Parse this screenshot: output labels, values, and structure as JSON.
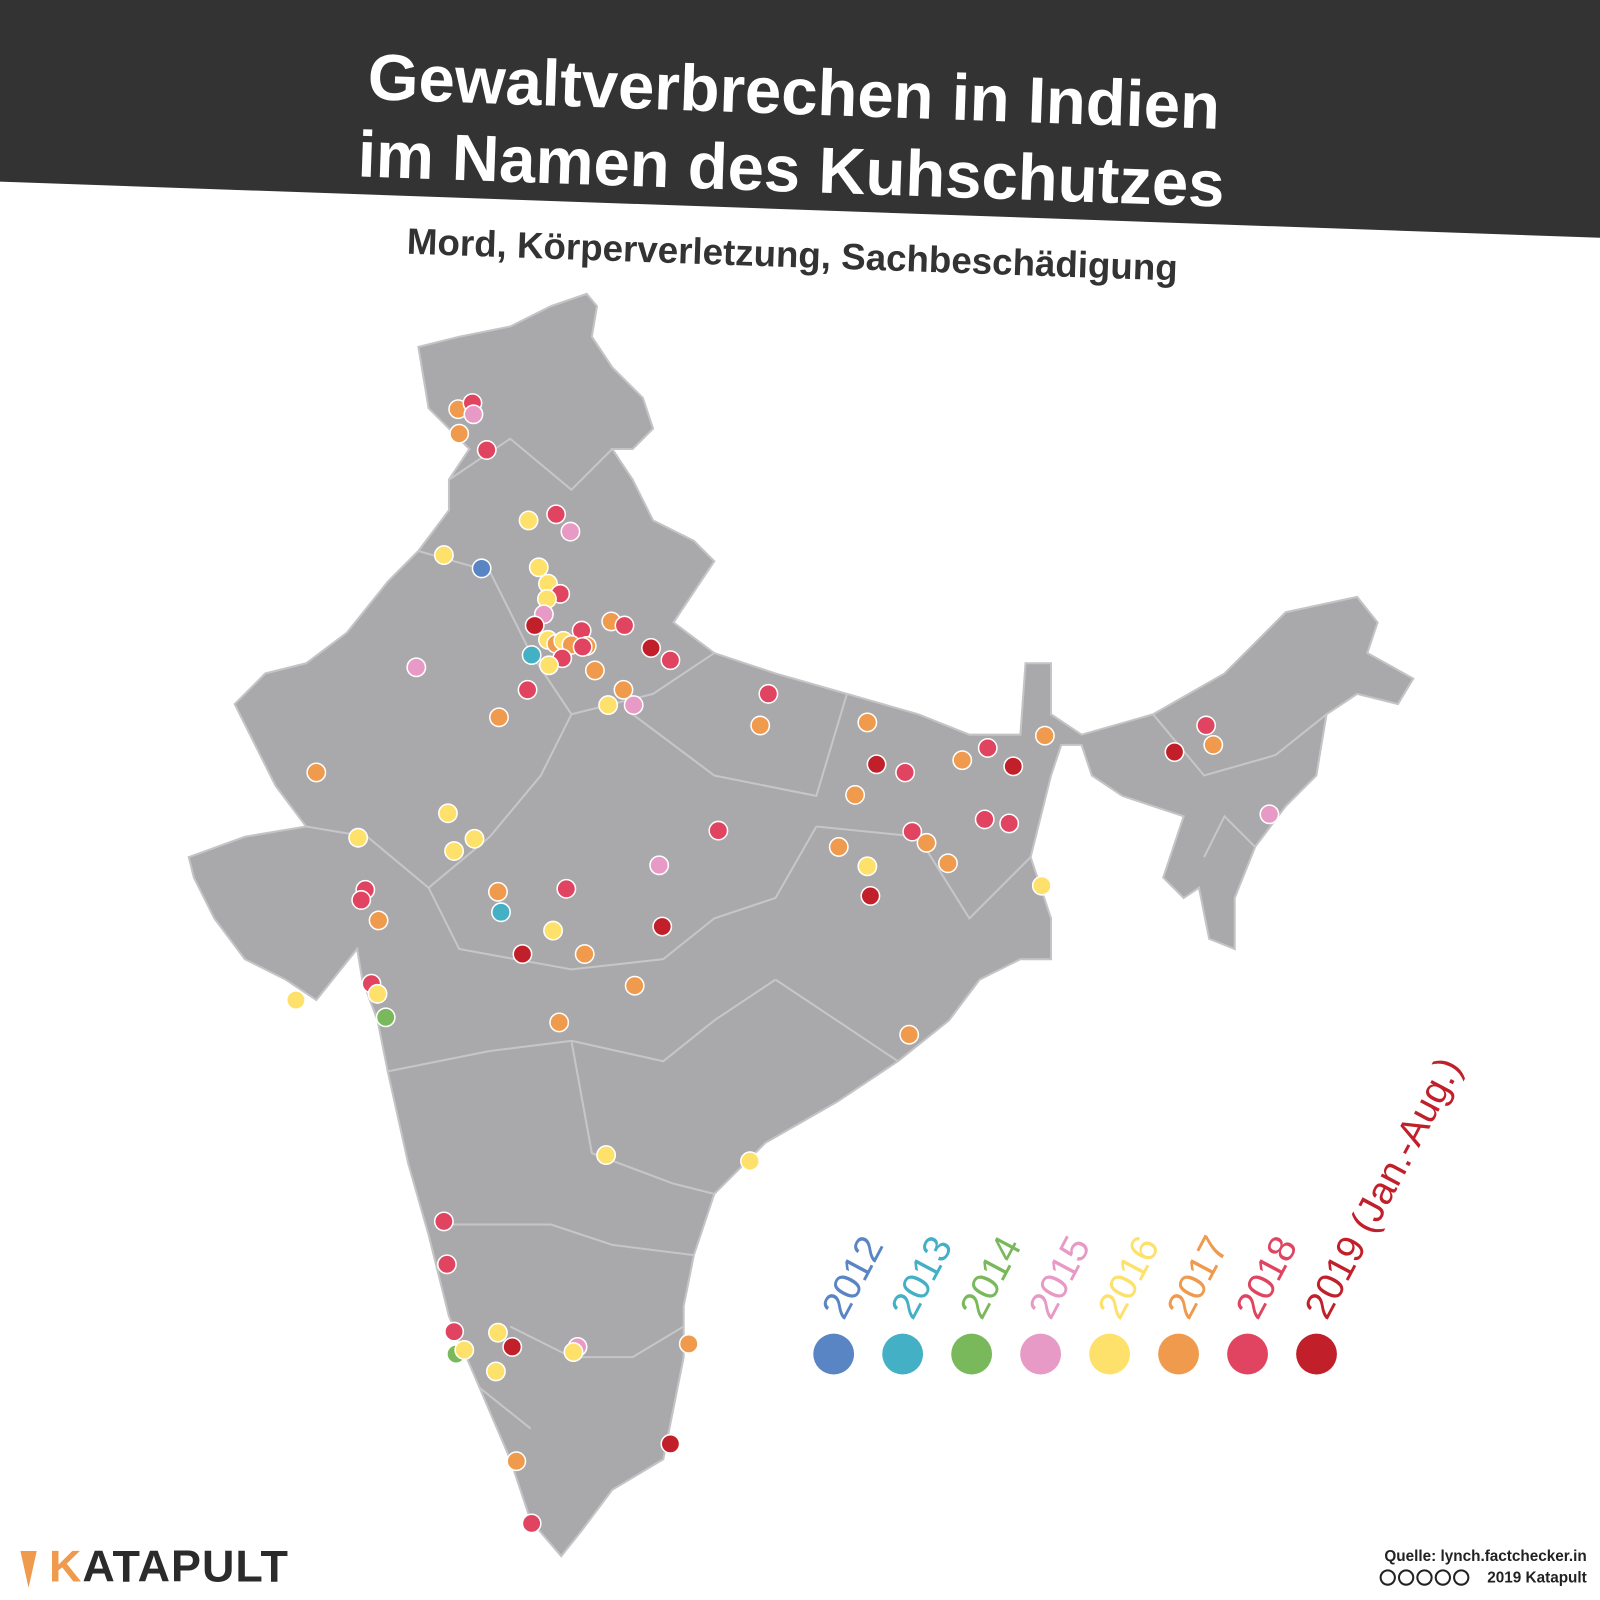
{
  "header": {
    "title_lines": [
      "Gewaltverbrechen in Indien",
      "im Namen des Kuhschutzes"
    ],
    "subtitle": "Mord, Körperverletzung, Sachbeschädigung"
  },
  "legend": {
    "items": [
      {
        "label": "2012",
        "color": "#5a85c5"
      },
      {
        "label": "2013",
        "color": "#43b0c5"
      },
      {
        "label": "2014",
        "color": "#79b95c"
      },
      {
        "label": "2015",
        "color": "#e79ac5"
      },
      {
        "label": "2016",
        "color": "#fde16b"
      },
      {
        "label": "2017",
        "color": "#ef9a4c"
      },
      {
        "label": "2018",
        "color": "#e04460"
      },
      {
        "label": "2019 (Jan.-Aug.)",
        "color": "#c1202a"
      }
    ]
  },
  "footer": {
    "logo": "KATAPULT",
    "source": "Quelle: lynch.factchecker.in",
    "copyright": "2019 Katapult"
  }
}
